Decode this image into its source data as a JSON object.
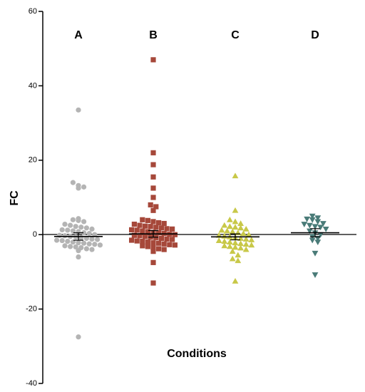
{
  "chart_data": {
    "type": "scatter",
    "title": "",
    "xlabel": "Conditions",
    "ylabel": "FC",
    "ylim": [
      -40,
      60
    ],
    "yticks": [
      {
        "value": 60,
        "label": "60"
      },
      {
        "value": 40,
        "label": "40"
      },
      {
        "value": 20,
        "label": "20"
      },
      {
        "value": 0,
        "label": "0"
      },
      {
        "value": -20,
        "label": "-20"
      },
      {
        "value": -40,
        "label": "-40"
      }
    ],
    "grid": false,
    "categories": [
      "A",
      "B",
      "C",
      "D"
    ],
    "series": [
      {
        "name": "A",
        "marker": "circle",
        "color": "#b4b4b4",
        "mean": -0.5,
        "error": 1.0,
        "values": [
          33.5,
          14.0,
          13.2,
          12.8,
          12.5,
          4.3,
          4.0,
          3.8,
          3.5,
          2.8,
          2.5,
          2.2,
          2.0,
          1.8,
          1.5,
          1.3,
          1.2,
          1.0,
          0.8,
          0.5,
          0.3,
          0.0,
          -0.2,
          -0.3,
          -0.5,
          -0.6,
          -0.8,
          -1.0,
          -1.2,
          -1.3,
          -1.5,
          -1.6,
          -1.8,
          -2.0,
          -2.2,
          -2.3,
          -2.5,
          -2.6,
          -2.8,
          -3.0,
          -3.2,
          -3.3,
          -3.5,
          -3.8,
          -4.0,
          -4.3,
          -6.0,
          -27.5
        ]
      },
      {
        "name": "B",
        "marker": "square",
        "color": "#a6483a",
        "mean": 0.2,
        "error": 0.9,
        "values": [
          47.0,
          22.0,
          18.8,
          15.5,
          12.5,
          10.0,
          8.0,
          7.5,
          6.5,
          4.0,
          3.8,
          3.5,
          3.2,
          3.0,
          2.8,
          2.5,
          2.3,
          2.2,
          2.0,
          1.8,
          1.6,
          1.5,
          1.3,
          1.2,
          1.0,
          0.8,
          0.6,
          0.5,
          0.3,
          0.1,
          0.0,
          -0.2,
          -0.3,
          -0.5,
          -0.7,
          -0.8,
          -1.0,
          -1.2,
          -1.3,
          -1.5,
          -1.7,
          -1.8,
          -2.0,
          -2.2,
          -2.3,
          -2.5,
          -2.7,
          -2.8,
          -3.0,
          -3.2,
          -3.5,
          -3.8,
          -4.0,
          -4.5,
          -7.5,
          -13.0
        ]
      },
      {
        "name": "C",
        "marker": "triangle-up",
        "color": "#c8c848",
        "mean": -0.6,
        "error": 0.8,
        "values": [
          15.8,
          6.5,
          4.0,
          3.5,
          3.0,
          2.5,
          2.2,
          2.0,
          1.8,
          1.5,
          1.2,
          1.0,
          0.8,
          0.5,
          0.3,
          0.0,
          -0.2,
          -0.4,
          -0.6,
          -0.8,
          -1.0,
          -1.2,
          -1.4,
          -1.6,
          -1.8,
          -2.0,
          -2.2,
          -2.4,
          -2.6,
          -2.8,
          -3.0,
          -3.2,
          -3.4,
          -3.6,
          -4.0,
          -4.5,
          -5.5,
          -6.5,
          -7.0,
          -12.5
        ]
      },
      {
        "name": "D",
        "marker": "triangle-down",
        "color": "#4a7b78",
        "mean": 0.5,
        "error": 1.1,
        "values": [
          5.0,
          4.5,
          4.2,
          4.0,
          3.5,
          3.0,
          2.8,
          2.5,
          2.2,
          2.0,
          1.5,
          1.0,
          0.5,
          0.0,
          -0.5,
          -1.0,
          -1.5,
          -2.0,
          -5.0,
          -10.8
        ]
      }
    ]
  }
}
